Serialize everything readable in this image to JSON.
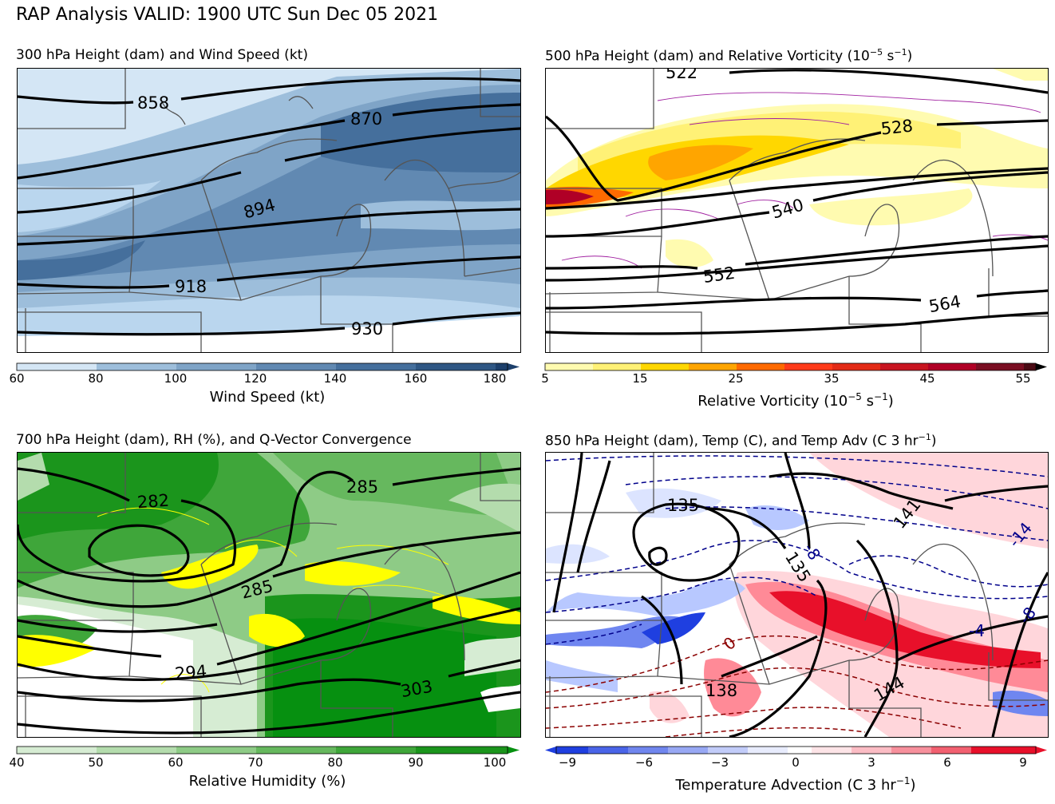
{
  "title": "RAP Analysis VALID: 1900 UTC Sun Dec 05 2021",
  "panels": [
    {
      "title": "300 hPa Height (dam) and Wind Speed (kt)",
      "colorbar": {
        "label": "Wind Speed (kt)",
        "ticks": [
          "60",
          "80",
          "100",
          "120",
          "140",
          "160",
          "180"
        ]
      },
      "contour_labels": [
        "858",
        "870",
        "894",
        "918",
        "930"
      ]
    },
    {
      "title": "500 hPa Height (dam) and Relative Vorticity (10",
      "title_sup1": "−5",
      "title_mid": " s",
      "title_sup2": "−1",
      "title_end": ")",
      "colorbar": {
        "label": "Relative Vorticity (10",
        "label_sup1": "−5",
        "label_mid": " s",
        "label_sup2": "−1",
        "label_end": ")",
        "ticks": [
          "5",
          "15",
          "25",
          "35",
          "45",
          "55"
        ]
      },
      "contour_labels": [
        "522",
        "528",
        "540",
        "552",
        "564"
      ]
    },
    {
      "title": "700 hPa Height (dam), RH (%), and Q-Vector Convergence",
      "colorbar": {
        "label": "Relative Humidity (%)",
        "ticks": [
          "40",
          "50",
          "60",
          "70",
          "80",
          "90",
          "100"
        ]
      },
      "contour_labels": [
        "282",
        "285",
        "285",
        "294",
        "303"
      ]
    },
    {
      "title": "850 hPa Height (dam), Temp (C), and Temp Adv (C 3 hr",
      "title_sup": "−1",
      "title_end": ")",
      "colorbar": {
        "label": "Temperature Advection (C 3 hr",
        "label_sup": "−1",
        "label_end": ")",
        "ticks": [
          "−9",
          "−6",
          "−3",
          "0",
          "3",
          "6",
          "9"
        ]
      },
      "contour_labels": [
        "135",
        "135",
        "141",
        "138",
        "144"
      ],
      "temp_labels": [
        "-8",
        "-4",
        "-8",
        "-14",
        "0"
      ]
    }
  ],
  "colors": {
    "wind": [
      "#d4e6f5",
      "#bad6ee",
      "#9dbedb",
      "#7fa4c7",
      "#6189b2",
      "#456f9c",
      "#2f5784",
      "#1c3f6b"
    ],
    "vort": [
      "#fffbb0",
      "#fff176",
      "#ffd700",
      "#ffa500",
      "#ff6a00",
      "#e32b17",
      "#b00026",
      "#7a0e22"
    ],
    "rh": [
      "#d6ecd3",
      "#b4dcad",
      "#8ecb86",
      "#66b85e",
      "#3fa63a",
      "#1b951c",
      "#069010"
    ],
    "adv_neg": "#1f3fe0",
    "adv_pos": "#e8102a",
    "qvec": "#ffff00"
  }
}
